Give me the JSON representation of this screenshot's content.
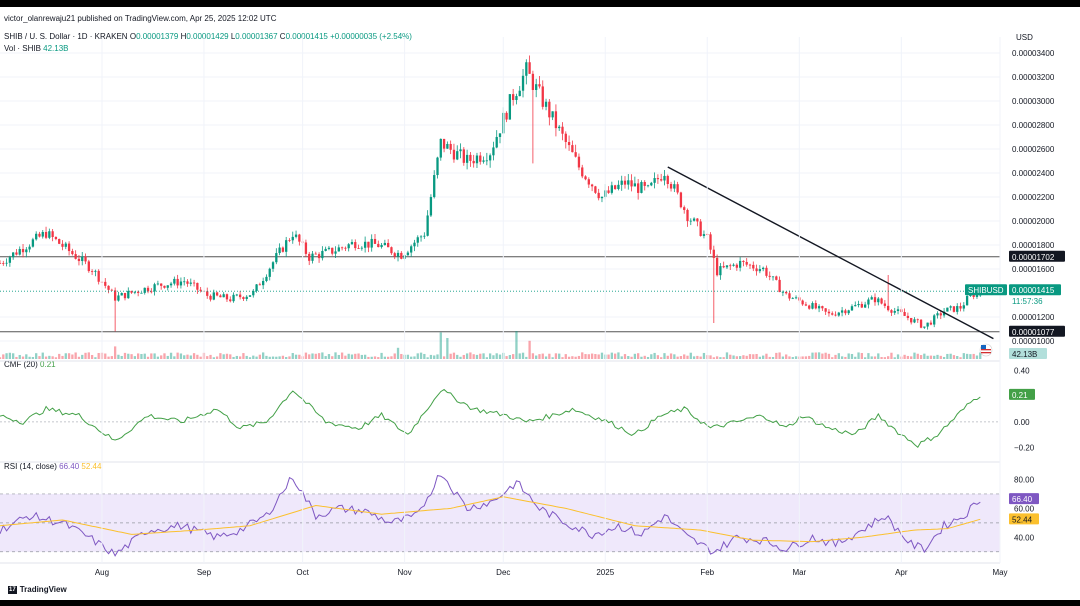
{
  "header": {
    "published": "victor_olanrewaju21 published on TradingView.com, Apr 25, 2025 12:02 UTC",
    "symbol": "SHIB / U. S. Dollar · 1D · KRAKEN",
    "ohlc": {
      "o_label": "O",
      "o": "0.00001379",
      "h_label": "H",
      "h": "0.00001429",
      "l_label": "L",
      "l": "0.00001367",
      "c_label": "C",
      "c": "0.00001415",
      "change": "+0.00000035 (+2.54%)"
    },
    "vol_label": "Vol · SHIB",
    "vol_value": "42.13B"
  },
  "indicators": {
    "cmf_label": "CMF (20)",
    "cmf_value": "0.21",
    "rsi_label": "RSI (14, close)",
    "rsi_value": "66.40",
    "rsi_ma_value": "52.44"
  },
  "currency": "USD",
  "price_ticks": [
    "0.00003400",
    "0.00003200",
    "0.00003000",
    "0.00002800",
    "0.00002600",
    "0.00002400",
    "0.00002200",
    "0.00002000",
    "0.00001800",
    "0.00001600",
    "0.00001200",
    "0.00001000"
  ],
  "badges": {
    "symbol": "SHIBUSD",
    "last_price": "0.00001415",
    "countdown": "11:57:36",
    "resistance": "0.00001702",
    "support": "0.00001077",
    "volume": "42.13B",
    "cmf": "0.21",
    "rsi": "66.40",
    "rsi_ma": "52.44"
  },
  "cmf_ticks": [
    "0.40",
    "0.00",
    "−0.20"
  ],
  "rsi_ticks": [
    "80.00",
    "60.00",
    "40.00"
  ],
  "x_labels": [
    "Aug",
    "Sep",
    "Oct",
    "Nov",
    "Dec",
    "2025",
    "Feb",
    "Mar",
    "Apr",
    "May"
  ],
  "footer": {
    "brand": "TradingView",
    "logo_text": "17"
  },
  "colors": {
    "up": "#089981",
    "down": "#f23645",
    "cmf": "#43a047",
    "rsi": "#7e57c2",
    "rsi_ma": "#fbc02d",
    "rsi_band": "#efe8fb"
  },
  "chart_data": [
    {
      "type": "candlestick",
      "title": "SHIB / U. S. Dollar · 1D · KRAKEN",
      "ylabel": "USD",
      "ylim": [
        9.5e-06,
        3.45e-05
      ],
      "x_range": [
        "2024-07-01",
        "2025-05-01"
      ],
      "months": [
        {
          "label": "Aug",
          "date": "2024-08-01"
        },
        {
          "label": "Sep",
          "date": "2024-09-01"
        },
        {
          "label": "Oct",
          "date": "2024-10-01"
        },
        {
          "label": "Nov",
          "date": "2024-11-01"
        },
        {
          "label": "Dec",
          "date": "2024-12-01"
        },
        {
          "label": "2025",
          "date": "2025-01-01"
        },
        {
          "label": "Feb",
          "date": "2025-02-01"
        },
        {
          "label": "Mar",
          "date": "2025-03-01"
        },
        {
          "label": "Apr",
          "date": "2025-04-01"
        },
        {
          "label": "May",
          "date": "2025-05-01"
        }
      ],
      "close_path": [
        [
          "2024-07-01",
          1.65e-05
        ],
        [
          "2024-07-08",
          1.78e-05
        ],
        [
          "2024-07-15",
          1.9e-05
        ],
        [
          "2024-07-22",
          1.75e-05
        ],
        [
          "2024-07-29",
          1.6e-05
        ],
        [
          "2024-08-05",
          1.36e-05
        ],
        [
          "2024-08-12",
          1.42e-05
        ],
        [
          "2024-08-19",
          1.47e-05
        ],
        [
          "2024-08-26",
          1.5e-05
        ],
        [
          "2024-09-02",
          1.38e-05
        ],
        [
          "2024-09-09",
          1.35e-05
        ],
        [
          "2024-09-16",
          1.4e-05
        ],
        [
          "2024-09-23",
          1.7e-05
        ],
        [
          "2024-09-28",
          1.9e-05
        ],
        [
          "2024-10-03",
          1.7e-05
        ],
        [
          "2024-10-10",
          1.75e-05
        ],
        [
          "2024-10-17",
          1.82e-05
        ],
        [
          "2024-10-24",
          1.8e-05
        ],
        [
          "2024-10-31",
          1.72e-05
        ],
        [
          "2024-11-07",
          1.9e-05
        ],
        [
          "2024-11-12",
          2.65e-05
        ],
        [
          "2024-11-20",
          2.5e-05
        ],
        [
          "2024-11-27",
          2.58e-05
        ],
        [
          "2024-12-04",
          3.05e-05
        ],
        [
          "2024-12-08",
          3.25e-05
        ],
        [
          "2024-12-13",
          3e-05
        ],
        [
          "2024-12-18",
          2.75e-05
        ],
        [
          "2024-12-24",
          2.45e-05
        ],
        [
          "2024-12-31",
          2.2e-05
        ],
        [
          "2025-01-07",
          2.32e-05
        ],
        [
          "2025-01-14",
          2.25e-05
        ],
        [
          "2025-01-19",
          2.42e-05
        ],
        [
          "2025-01-26",
          2.05e-05
        ],
        [
          "2025-02-01",
          1.85e-05
        ],
        [
          "2025-02-04",
          1.58e-05
        ],
        [
          "2025-02-11",
          1.65e-05
        ],
        [
          "2025-02-18",
          1.6e-05
        ],
        [
          "2025-02-25",
          1.38e-05
        ],
        [
          "2025-03-04",
          1.3e-05
        ],
        [
          "2025-03-10",
          1.22e-05
        ],
        [
          "2025-03-17",
          1.28e-05
        ],
        [
          "2025-03-24",
          1.35e-05
        ],
        [
          "2025-03-28",
          1.28e-05
        ],
        [
          "2025-04-04",
          1.18e-05
        ],
        [
          "2025-04-08",
          1.12e-05
        ],
        [
          "2025-04-14",
          1.25e-05
        ],
        [
          "2025-04-19",
          1.28e-05
        ],
        [
          "2025-04-22",
          1.38e-05
        ],
        [
          "2025-04-25",
          1.415e-05
        ]
      ],
      "spikes": [
        {
          "date": "2024-08-05",
          "low": 1.08e-05
        },
        {
          "date": "2025-02-03",
          "low": 1.15e-05
        },
        {
          "date": "2024-12-10",
          "low": 2.48e-05
        },
        {
          "date": "2025-03-28",
          "high": 1.55e-05
        }
      ],
      "last": {
        "date": "2025-04-25",
        "open": 1.379e-05,
        "high": 1.429e-05,
        "low": 1.367e-05,
        "close": 1.415e-05,
        "change": 3.5e-07,
        "change_pct": 2.54
      },
      "horizontal_levels": [
        1.702e-05,
        1.077e-05
      ],
      "trendline": [
        [
          "2025-01-20",
          2.45e-05
        ],
        [
          "2025-04-29",
          1.02e-05
        ]
      ]
    },
    {
      "type": "bar",
      "title": "Vol · SHIB",
      "last": "42.13B",
      "relative_spikes": [
        {
          "date": "2024-11-12",
          "value": 0.95
        },
        {
          "date": "2024-11-14",
          "value": 0.75
        },
        {
          "date": "2024-12-05",
          "value": 1.0
        },
        {
          "date": "2024-12-09",
          "value": 0.65
        },
        {
          "date": "2024-10-30",
          "value": 0.4
        },
        {
          "date": "2024-08-05",
          "value": 0.45
        }
      ]
    },
    {
      "type": "line",
      "title": "CMF (20)",
      "ylim": [
        -0.25,
        0.45
      ],
      "last": 0.21,
      "series": [
        {
          "name": "CMF (20)",
          "points": [
            [
              "2024-07-01",
              0.05
            ],
            [
              "2024-07-08",
              0.0
            ],
            [
              "2024-07-15",
              0.1
            ],
            [
              "2024-07-25",
              0.05
            ],
            [
              "2024-08-05",
              -0.15
            ],
            [
              "2024-08-15",
              0.05
            ],
            [
              "2024-08-25",
              0.0
            ],
            [
              "2024-09-05",
              0.1
            ],
            [
              "2024-09-12",
              -0.05
            ],
            [
              "2024-09-20",
              0.0
            ],
            [
              "2024-09-28",
              0.25
            ],
            [
              "2024-10-08",
              0.0
            ],
            [
              "2024-10-18",
              -0.05
            ],
            [
              "2024-10-25",
              0.05
            ],
            [
              "2024-11-02",
              -0.1
            ],
            [
              "2024-11-12",
              0.25
            ],
            [
              "2024-11-22",
              0.1
            ],
            [
              "2024-12-02",
              0.05
            ],
            [
              "2024-12-08",
              0.0
            ],
            [
              "2024-12-16",
              0.05
            ],
            [
              "2024-12-22",
              0.1
            ],
            [
              "2025-01-02",
              0.0
            ],
            [
              "2025-01-10",
              -0.1
            ],
            [
              "2025-01-18",
              0.05
            ],
            [
              "2025-01-25",
              0.1
            ],
            [
              "2025-02-02",
              -0.05
            ],
            [
              "2025-02-10",
              0.0
            ],
            [
              "2025-02-18",
              0.05
            ],
            [
              "2025-02-25",
              -0.05
            ],
            [
              "2025-03-02",
              0.05
            ],
            [
              "2025-03-10",
              -0.05
            ],
            [
              "2025-03-18",
              -0.1
            ],
            [
              "2025-03-25",
              0.05
            ],
            [
              "2025-04-01",
              -0.1
            ],
            [
              "2025-04-06",
              -0.18
            ],
            [
              "2025-04-12",
              -0.1
            ],
            [
              "2025-04-18",
              0.05
            ],
            [
              "2025-04-22",
              0.15
            ],
            [
              "2025-04-25",
              0.21
            ]
          ]
        }
      ]
    },
    {
      "type": "line",
      "title": "RSI (14, close)",
      "ylim": [
        25,
        90
      ],
      "band": [
        30,
        70
      ],
      "series": [
        {
          "name": "RSI (14, close)",
          "last": 66.4,
          "points": [
            [
              "2024-07-01",
              45
            ],
            [
              "2024-07-10",
              55
            ],
            [
              "2024-07-20",
              50
            ],
            [
              "2024-07-28",
              40
            ],
            [
              "2024-08-05",
              28
            ],
            [
              "2024-08-15",
              45
            ],
            [
              "2024-08-25",
              48
            ],
            [
              "2024-09-05",
              40
            ],
            [
              "2024-09-12",
              45
            ],
            [
              "2024-09-20",
              55
            ],
            [
              "2024-09-28",
              82
            ],
            [
              "2024-10-05",
              55
            ],
            [
              "2024-10-12",
              60
            ],
            [
              "2024-10-20",
              58
            ],
            [
              "2024-10-28",
              50
            ],
            [
              "2024-11-05",
              55
            ],
            [
              "2024-11-12",
              85
            ],
            [
              "2024-11-20",
              60
            ],
            [
              "2024-11-28",
              65
            ],
            [
              "2024-12-05",
              78
            ],
            [
              "2024-12-12",
              60
            ],
            [
              "2024-12-20",
              50
            ],
            [
              "2024-12-28",
              42
            ],
            [
              "2025-01-05",
              48
            ],
            [
              "2025-01-12",
              42
            ],
            [
              "2025-01-19",
              55
            ],
            [
              "2025-01-26",
              40
            ],
            [
              "2025-02-03",
              30
            ],
            [
              "2025-02-10",
              40
            ],
            [
              "2025-02-18",
              38
            ],
            [
              "2025-02-25",
              32
            ],
            [
              "2025-03-05",
              40
            ],
            [
              "2025-03-12",
              35
            ],
            [
              "2025-03-20",
              45
            ],
            [
              "2025-03-27",
              55
            ],
            [
              "2025-04-04",
              35
            ],
            [
              "2025-04-08",
              32
            ],
            [
              "2025-04-14",
              48
            ],
            [
              "2025-04-20",
              55
            ],
            [
              "2025-04-25",
              66.4
            ]
          ]
        },
        {
          "name": "RSI-based MA",
          "last": 52.44,
          "points": [
            [
              "2024-07-01",
              48
            ],
            [
              "2024-07-20",
              52
            ],
            [
              "2024-08-10",
              42
            ],
            [
              "2024-08-30",
              45
            ],
            [
              "2024-09-15",
              48
            ],
            [
              "2024-10-05",
              62
            ],
            [
              "2024-10-25",
              56
            ],
            [
              "2024-11-15",
              60
            ],
            [
              "2024-12-01",
              68
            ],
            [
              "2024-12-20",
              60
            ],
            [
              "2025-01-10",
              48
            ],
            [
              "2025-01-30",
              45
            ],
            [
              "2025-02-15",
              38
            ],
            [
              "2025-03-05",
              37
            ],
            [
              "2025-03-20",
              40
            ],
            [
              "2025-04-05",
              45
            ],
            [
              "2025-04-15",
              46
            ],
            [
              "2025-04-25",
              52.44
            ]
          ]
        }
      ]
    }
  ]
}
